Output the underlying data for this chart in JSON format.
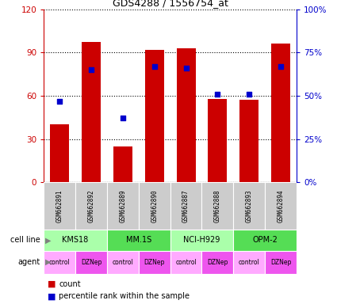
{
  "title": "GDS4288 / 1556754_at",
  "samples": [
    "GSM662891",
    "GSM662892",
    "GSM662889",
    "GSM662890",
    "GSM662887",
    "GSM662888",
    "GSM662893",
    "GSM662894"
  ],
  "count_values": [
    40,
    97,
    25,
    92,
    93,
    58,
    57,
    96
  ],
  "percentile_values": [
    47,
    65,
    37,
    67,
    66,
    51,
    51,
    67
  ],
  "bar_color": "#cc0000",
  "dot_color": "#0000cc",
  "left_yaxis": {
    "min": 0,
    "max": 120,
    "ticks": [
      0,
      30,
      60,
      90,
      120
    ],
    "color": "#cc0000"
  },
  "right_yaxis": {
    "min": 0,
    "max": 100,
    "ticks": [
      0,
      25,
      50,
      75,
      100
    ],
    "labels": [
      "0%",
      "25%",
      "50%",
      "75%",
      "100%"
    ],
    "color": "#0000cc"
  },
  "cell_lines": [
    {
      "name": "KMS18",
      "span": [
        0,
        2
      ],
      "color": "#aaffaa"
    },
    {
      "name": "MM.1S",
      "span": [
        2,
        4
      ],
      "color": "#55dd55"
    },
    {
      "name": "NCI-H929",
      "span": [
        4,
        6
      ],
      "color": "#aaffaa"
    },
    {
      "name": "OPM-2",
      "span": [
        6,
        8
      ],
      "color": "#55dd55"
    }
  ],
  "agents": [
    "control",
    "DZNep",
    "control",
    "DZNep",
    "control",
    "DZNep",
    "control",
    "DZNep"
  ],
  "agent_light_color": "#ffaaff",
  "agent_dark_color": "#ee55ee",
  "xlabel_bg": "#cccccc",
  "legend_count_color": "#cc0000",
  "legend_dot_color": "#0000cc",
  "bar_width": 0.6,
  "fig_width": 4.25,
  "fig_height": 3.84,
  "dpi": 100
}
